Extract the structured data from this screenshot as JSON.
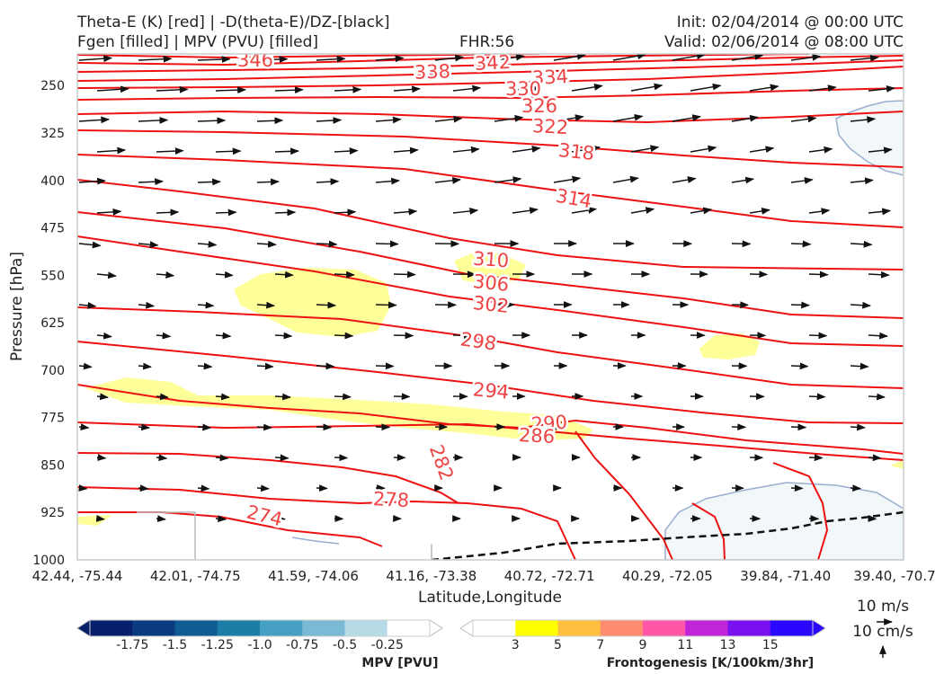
{
  "header": {
    "line1_left": "Theta-E (K) [red] | -D(theta-E)/DZ-[black]",
    "line2_left": "Fgen [filled] | MPV (PVU) [filled]",
    "fhr": "FHR:56",
    "init": "Init: 02/04/2014 @ 00:00 UTC",
    "valid": "Valid: 02/06/2014 @ 08:00 UTC"
  },
  "chart_data": {
    "type": "cross-section",
    "xlabel": "Latitude,Longitude",
    "ylabel": "Pressure [hPa]",
    "x_ticks": [
      "42.44, -75.44",
      "42.01, -74.75",
      "41.59, -74.06",
      "41.16, -73.38",
      "40.72, -72.71",
      "40.29, -72.05",
      "39.84, -71.40",
      "39.40, -70.7"
    ],
    "y_ticks": [
      250,
      325,
      400,
      475,
      550,
      625,
      700,
      775,
      850,
      925,
      1000
    ],
    "ylim": [
      1000,
      200
    ],
    "theta_e_labels": [
      "346",
      "342",
      "338",
      "334",
      "330",
      "326",
      "322",
      "318",
      "314",
      "310",
      "306",
      "302",
      "298",
      "294",
      "290",
      "286",
      "282",
      "278",
      "274"
    ],
    "colors": {
      "theta_e": "#ee1111",
      "arrows": "#111111",
      "fgen_fill": "#ffff99",
      "mpv_fill": "#f2f8fa",
      "mpv_edge": "#9aaed0"
    },
    "reference_vectors": {
      "horizontal": "10 m/s",
      "vertical": "10 cm/s"
    },
    "colorbars": [
      {
        "name": "MPV [PVU]",
        "ticks": [
          "-1.75",
          "-1.5",
          "-1.25",
          "-1.0",
          "-0.75",
          "-0.5",
          "-0.25"
        ],
        "colors": [
          "#08206b",
          "#0a3b80",
          "#105c92",
          "#1c7ea6",
          "#45a0c3",
          "#7bbad4",
          "#b6dbe7",
          "#ffffff"
        ]
      },
      {
        "name": "Frontogenesis [K/100km/3hr]",
        "ticks": [
          "3",
          "5",
          "7",
          "9",
          "11",
          "13",
          "15"
        ],
        "colors": [
          "#ffffff",
          "#ffff00",
          "#ffc040",
          "#ff8c6e",
          "#ff56a8",
          "#c025d8",
          "#7a10f0",
          "#2a08ff"
        ]
      }
    ]
  }
}
